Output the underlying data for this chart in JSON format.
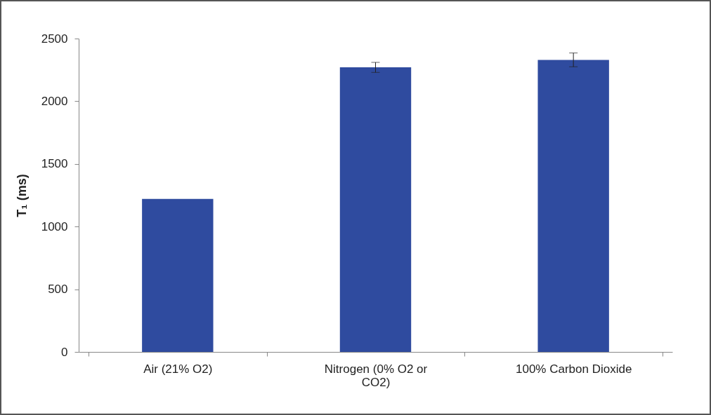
{
  "chart_data": {
    "type": "bar",
    "ylabel": "T₁ (ms)",
    "categories": [
      "Air (21% O2)",
      "Nitrogen (0% O2 or CO2)",
      "100% Carbon Dioxide"
    ],
    "values": [
      1220,
      2270,
      2330
    ],
    "errors": [
      null,
      40,
      55
    ],
    "color": "#2f4b9f",
    "ylim": [
      0,
      2500
    ],
    "yticks": [
      0,
      500,
      1000,
      1500,
      2000,
      2500
    ],
    "grid": false
  }
}
